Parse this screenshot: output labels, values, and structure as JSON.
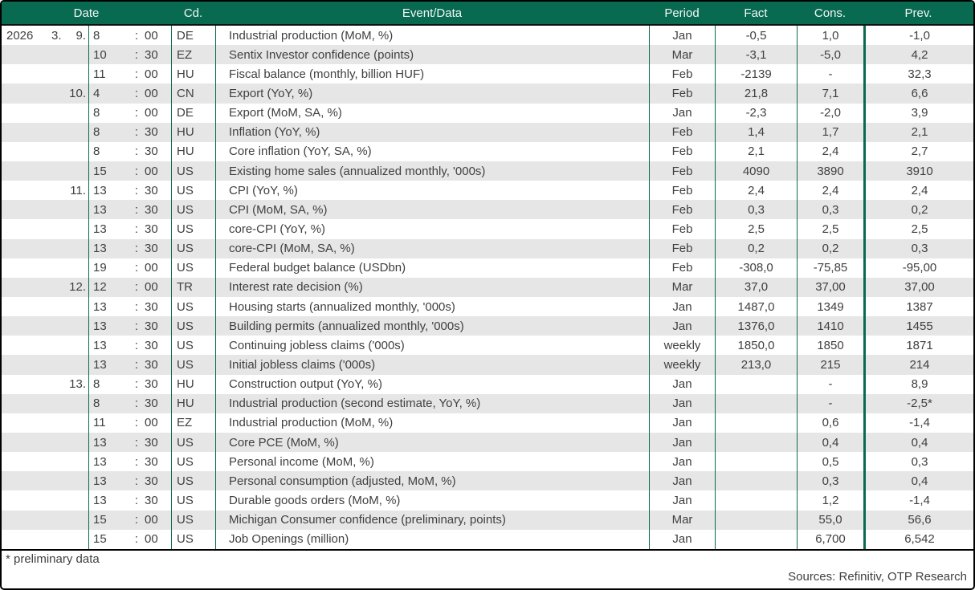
{
  "table": {
    "columns": {
      "date": "Date",
      "cd": "Cd.",
      "event": "Event/Data",
      "period": "Period",
      "fact": "Fact",
      "cons": "Cons.",
      "prev": "Prev."
    },
    "time_separator": ":",
    "rows": [
      {
        "year": "2026",
        "month": "3.",
        "day": "9.",
        "hour": "8",
        "min": "00",
        "cd": "DE",
        "event": "Industrial production (MoM, %)",
        "period": "Jan",
        "fact": "-0,5",
        "cons": "1,0",
        "prev": "-1,0"
      },
      {
        "year": "",
        "month": "",
        "day": "",
        "hour": "10",
        "min": "30",
        "cd": "EZ",
        "event": "Sentix Investor confidence (points)",
        "period": "Mar",
        "fact": "-3,1",
        "cons": "-5,0",
        "prev": "4,2"
      },
      {
        "year": "",
        "month": "",
        "day": "",
        "hour": "11",
        "min": "00",
        "cd": "HU",
        "event": "Fiscal balance (monthly, billion HUF)",
        "period": "Feb",
        "fact": "-2139",
        "cons": "-",
        "prev": "32,3"
      },
      {
        "year": "",
        "month": "",
        "day": "10.",
        "hour": "4",
        "min": "00",
        "cd": "CN",
        "event": "Export (YoY, %)",
        "period": "Feb",
        "fact": "21,8",
        "cons": "7,1",
        "prev": "6,6"
      },
      {
        "year": "",
        "month": "",
        "day": "",
        "hour": "8",
        "min": "00",
        "cd": "DE",
        "event": "Export (MoM, SA, %)",
        "period": "Jan",
        "fact": "-2,3",
        "cons": "-2,0",
        "prev": "3,9"
      },
      {
        "year": "",
        "month": "",
        "day": "",
        "hour": "8",
        "min": "30",
        "cd": "HU",
        "event": "Inflation (YoY, %)",
        "period": "Feb",
        "fact": "1,4",
        "cons": "1,7",
        "prev": "2,1"
      },
      {
        "year": "",
        "month": "",
        "day": "",
        "hour": "8",
        "min": "30",
        "cd": "HU",
        "event": "Core inflation (YoY, SA, %)",
        "period": "Feb",
        "fact": "2,1",
        "cons": "2,4",
        "prev": "2,7"
      },
      {
        "year": "",
        "month": "",
        "day": "",
        "hour": "15",
        "min": "00",
        "cd": "US",
        "event": "Existing home sales (annualized monthly, '000s)",
        "period": "Feb",
        "fact": "4090",
        "cons": "3890",
        "prev": "3910"
      },
      {
        "year": "",
        "month": "",
        "day": "11.",
        "hour": "13",
        "min": "30",
        "cd": "US",
        "event": "CPI (YoY, %)",
        "period": "Feb",
        "fact": "2,4",
        "cons": "2,4",
        "prev": "2,4"
      },
      {
        "year": "",
        "month": "",
        "day": "",
        "hour": "13",
        "min": "30",
        "cd": "US",
        "event": "CPI (MoM, SA, %)",
        "period": "Feb",
        "fact": "0,3",
        "cons": "0,3",
        "prev": "0,2"
      },
      {
        "year": "",
        "month": "",
        "day": "",
        "hour": "13",
        "min": "30",
        "cd": "US",
        "event": "core-CPI (YoY, %)",
        "period": "Feb",
        "fact": "2,5",
        "cons": "2,5",
        "prev": "2,5"
      },
      {
        "year": "",
        "month": "",
        "day": "",
        "hour": "13",
        "min": "30",
        "cd": "US",
        "event": "core-CPI (MoM, SA, %)",
        "period": "Feb",
        "fact": "0,2",
        "cons": "0,2",
        "prev": "0,3"
      },
      {
        "year": "",
        "month": "",
        "day": "",
        "hour": "19",
        "min": "00",
        "cd": "US",
        "event": "Federal budget balance (USDbn)",
        "period": "Feb",
        "fact": "-308,0",
        "cons": "-75,85",
        "prev": "-95,00"
      },
      {
        "year": "",
        "month": "",
        "day": "12.",
        "hour": "12",
        "min": "00",
        "cd": "TR",
        "event": "Interest rate decision (%)",
        "period": "Mar",
        "fact": "37,0",
        "cons": "37,00",
        "prev": "37,00"
      },
      {
        "year": "",
        "month": "",
        "day": "",
        "hour": "13",
        "min": "30",
        "cd": "US",
        "event": "Housing starts (annualized monthly, '000s)",
        "period": "Jan",
        "fact": "1487,0",
        "cons": "1349",
        "prev": "1387"
      },
      {
        "year": "",
        "month": "",
        "day": "",
        "hour": "13",
        "min": "30",
        "cd": "US",
        "event": "Building permits (annualized monthly, '000s)",
        "period": "Jan",
        "fact": "1376,0",
        "cons": "1410",
        "prev": "1455"
      },
      {
        "year": "",
        "month": "",
        "day": "",
        "hour": "13",
        "min": "30",
        "cd": "US",
        "event": "Continuing jobless claims ('000s)",
        "period": "weekly",
        "fact": "1850,0",
        "cons": "1850",
        "prev": "1871"
      },
      {
        "year": "",
        "month": "",
        "day": "",
        "hour": "13",
        "min": "30",
        "cd": "US",
        "event": "Initial jobless claims ('000s)",
        "period": "weekly",
        "fact": "213,0",
        "cons": "215",
        "prev": "214"
      },
      {
        "year": "",
        "month": "",
        "day": "13.",
        "hour": "8",
        "min": "30",
        "cd": "HU",
        "event": "Construction output (YoY, %)",
        "period": "Jan",
        "fact": "",
        "cons": "-",
        "prev": "8,9"
      },
      {
        "year": "",
        "month": "",
        "day": "",
        "hour": "8",
        "min": "30",
        "cd": "HU",
        "event": "Industrial production (second estimate, YoY, %)",
        "period": "Jan",
        "fact": "",
        "cons": "-",
        "prev": "-2,5*"
      },
      {
        "year": "",
        "month": "",
        "day": "",
        "hour": "11",
        "min": "00",
        "cd": "EZ",
        "event": "Industrial production (MoM, %)",
        "period": "Jan",
        "fact": "",
        "cons": "0,6",
        "prev": "-1,4"
      },
      {
        "year": "",
        "month": "",
        "day": "",
        "hour": "13",
        "min": "30",
        "cd": "US",
        "event": "Core PCE (MoM, %)",
        "period": "Jan",
        "fact": "",
        "cons": "0,4",
        "prev": "0,4"
      },
      {
        "year": "",
        "month": "",
        "day": "",
        "hour": "13",
        "min": "30",
        "cd": "US",
        "event": "Personal income (MoM, %)",
        "period": "Jan",
        "fact": "",
        "cons": "0,5",
        "prev": "0,3"
      },
      {
        "year": "",
        "month": "",
        "day": "",
        "hour": "13",
        "min": "30",
        "cd": "US",
        "event": "Personal consumption (adjusted, MoM, %)",
        "period": "Jan",
        "fact": "",
        "cons": "0,3",
        "prev": "0,4"
      },
      {
        "year": "",
        "month": "",
        "day": "",
        "hour": "13",
        "min": "30",
        "cd": "US",
        "event": "Durable goods orders (MoM, %)",
        "period": "Jan",
        "fact": "",
        "cons": "1,2",
        "prev": "-1,4"
      },
      {
        "year": "",
        "month": "",
        "day": "",
        "hour": "15",
        "min": "00",
        "cd": "US",
        "event": "Michigan Consumer confidence (preliminary, points)",
        "period": "Mar",
        "fact": "",
        "cons": "55,0",
        "prev": "56,6"
      },
      {
        "year": "",
        "month": "",
        "day": "",
        "hour": "15",
        "min": "00",
        "cd": "US",
        "event": "Job Openings (million)",
        "period": "Jan",
        "fact": "",
        "cons": "6,700",
        "prev": "6,542"
      }
    ]
  },
  "footer": {
    "note": "* preliminary data",
    "sources": "Sources: Refinitiv, OTP Research"
  },
  "colors": {
    "header_green": "#086b51",
    "grid_green": "#086b51",
    "row_alt_grey": "#e6e6e6",
    "frame_black": "#000000",
    "text_grey": "#404040",
    "header_text": "#f5f5f5"
  }
}
